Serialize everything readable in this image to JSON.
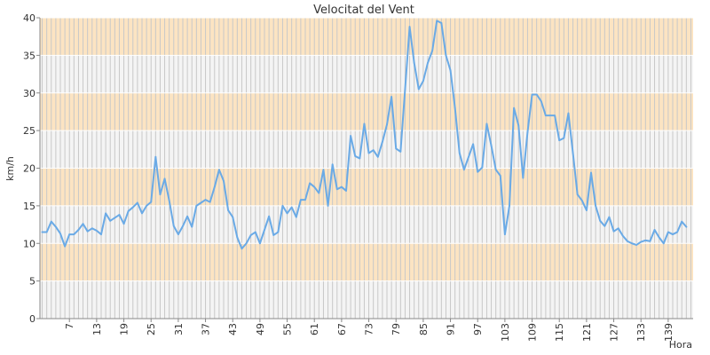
{
  "chart_data": {
    "type": "line",
    "title": "Velocitat del Vent",
    "xlabel": "Hora",
    "ylabel": "km/h",
    "ylim": [
      0,
      40
    ],
    "xlim": [
      1,
      144
    ],
    "y_ticks": [
      0,
      5,
      10,
      15,
      20,
      25,
      30,
      35,
      40
    ],
    "x_ticks": [
      7,
      13,
      19,
      25,
      31,
      37,
      43,
      49,
      55,
      61,
      67,
      73,
      79,
      85,
      91,
      97,
      103,
      109,
      115,
      121,
      127,
      133,
      139
    ],
    "grid": true,
    "legend": "none",
    "series": [
      {
        "values": [
          11.5,
          11.5,
          12.9,
          12.2,
          11.3,
          9.6,
          11.2,
          11.2,
          11.8,
          12.6,
          11.6,
          12.0,
          11.7,
          11.2,
          14.0,
          13.0,
          13.4,
          13.8,
          12.6,
          14.3,
          14.8,
          15.4,
          14.0,
          15.0,
          15.5,
          21.5,
          16.5,
          18.6,
          15.7,
          12.3,
          11.2,
          12.3,
          13.6,
          12.2,
          15.0,
          15.4,
          15.8,
          15.5,
          17.5,
          19.8,
          18.3,
          14.4,
          13.5,
          10.8,
          9.3,
          10.0,
          11.1,
          11.5,
          10.0,
          11.8,
          13.6,
          11.1,
          11.5,
          15.0,
          14.0,
          14.8,
          13.5,
          15.8,
          15.8,
          18.0,
          17.5,
          16.7,
          19.8,
          15.0,
          20.5,
          17.2,
          17.5,
          17.0,
          24.3,
          21.6,
          21.3,
          25.9,
          22.0,
          22.4,
          21.5,
          23.5,
          25.8,
          29.5,
          22.6,
          22.2,
          30.5,
          38.8,
          34.0,
          30.5,
          31.6,
          34.0,
          35.6,
          39.6,
          39.3,
          35.0,
          33.0,
          28.0,
          22.0,
          19.8,
          21.5,
          23.2,
          19.5,
          20.1,
          25.9,
          23.0,
          19.8,
          19.0,
          11.2,
          15.0,
          28.0,
          25.7,
          18.7,
          24.8,
          29.8,
          29.8,
          28.9,
          27.0,
          27.0,
          27.0,
          23.7,
          24.0,
          27.3,
          22.0,
          16.5,
          15.7,
          14.4,
          19.4,
          15.0,
          13.0,
          12.3,
          13.5,
          11.6,
          12.0,
          11.0,
          10.3,
          10.0,
          9.8,
          10.2,
          10.4,
          10.3,
          11.8,
          10.8,
          10.0,
          11.5,
          11.2,
          11.5,
          12.9,
          12.2
        ]
      }
    ],
    "colors": {
      "line": "#6aaae6",
      "band_orange": "#fce4c2",
      "band_light": "#f4f4f4",
      "vgrid": "#c8c8c8",
      "hgrid": "#ffffff",
      "axis": "#888888"
    }
  }
}
